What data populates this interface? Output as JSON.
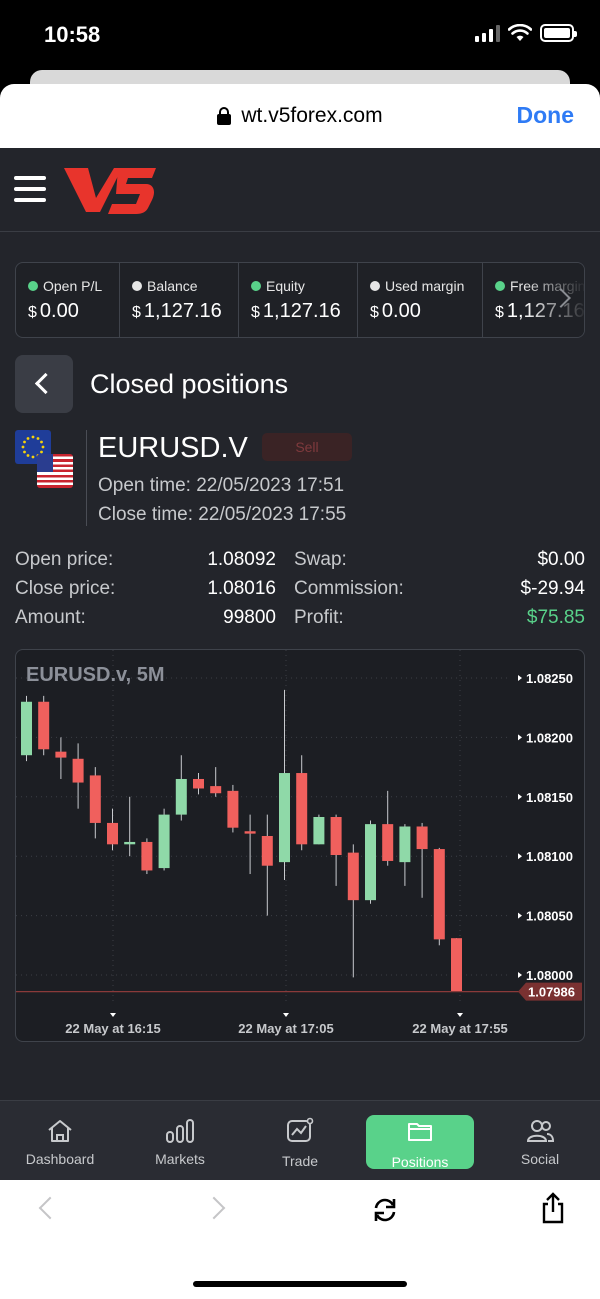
{
  "status_bar": {
    "time": "10:58"
  },
  "browser": {
    "url": "wt.v5forex.com",
    "done_label": "Done"
  },
  "stats": [
    {
      "label": "Open P/L",
      "currency": "$",
      "value": "0.00",
      "dot_color": "#59d28a"
    },
    {
      "label": "Balance",
      "currency": "$",
      "value": "1,127.16",
      "dot_color": "#e6e6e6"
    },
    {
      "label": "Equity",
      "currency": "$",
      "value": "1,127.16",
      "dot_color": "#59d28a"
    },
    {
      "label": "Used margin",
      "currency": "$",
      "value": "0.00",
      "dot_color": "#e6e6e6"
    },
    {
      "label": "Free margin",
      "currency": "$",
      "value": "1,127.16",
      "dot_color": "#59d28a"
    }
  ],
  "page": {
    "title": "Closed positions"
  },
  "position": {
    "symbol": "EURUSD.V",
    "side": "Sell",
    "open_time": "Open time: 22/05/2023 17:51",
    "close_time": "Close time: 22/05/2023 17:55",
    "details": {
      "open_price_label": "Open price:",
      "open_price": "1.08092",
      "close_price_label": "Close price:",
      "close_price": "1.08016",
      "amount_label": "Amount:",
      "amount": "99800",
      "swap_label": "Swap:",
      "swap": "$0.00",
      "commission_label": "Commission:",
      "commission": "$-29.94",
      "profit_label": "Profit:",
      "profit": "$75.85"
    }
  },
  "chart_data": {
    "type": "candlestick",
    "title": "EURUSD.v, 5M",
    "ylim": [
      1.0797,
      1.08275
    ],
    "y_ticks": [
      "1.08250",
      "1.08200",
      "1.08150",
      "1.08100",
      "1.08050",
      "1.08000"
    ],
    "x_ticks": [
      "22 May at 16:15",
      "22 May at 17:05",
      "22 May at 17:55"
    ],
    "last_price": "1.07986",
    "up_color": "#8fd9a8",
    "down_color": "#f0605d",
    "candles": [
      {
        "o": 1.08185,
        "h": 1.08235,
        "l": 1.0818,
        "c": 1.0823
      },
      {
        "o": 1.0823,
        "h": 1.08235,
        "l": 1.08185,
        "c": 1.0819
      },
      {
        "o": 1.08188,
        "h": 1.082,
        "l": 1.08165,
        "c": 1.08183
      },
      {
        "o": 1.08182,
        "h": 1.08195,
        "l": 1.0814,
        "c": 1.08162
      },
      {
        "o": 1.08168,
        "h": 1.08175,
        "l": 1.08115,
        "c": 1.08128
      },
      {
        "o": 1.08128,
        "h": 1.0814,
        "l": 1.08105,
        "c": 1.0811
      },
      {
        "o": 1.0811,
        "h": 1.0815,
        "l": 1.081,
        "c": 1.08112
      },
      {
        "o": 1.08112,
        "h": 1.08115,
        "l": 1.08085,
        "c": 1.08088
      },
      {
        "o": 1.0809,
        "h": 1.0814,
        "l": 1.08088,
        "c": 1.08135
      },
      {
        "o": 1.08135,
        "h": 1.08185,
        "l": 1.0813,
        "c": 1.08165
      },
      {
        "o": 1.08165,
        "h": 1.0817,
        "l": 1.08152,
        "c": 1.08157
      },
      {
        "o": 1.08159,
        "h": 1.08175,
        "l": 1.0815,
        "c": 1.08153
      },
      {
        "o": 1.08155,
        "h": 1.0816,
        "l": 1.0812,
        "c": 1.08124
      },
      {
        "o": 1.08121,
        "h": 1.08135,
        "l": 1.08085,
        "c": 1.08119
      },
      {
        "o": 1.08117,
        "h": 1.08135,
        "l": 1.0805,
        "c": 1.08092
      },
      {
        "o": 1.08095,
        "h": 1.0824,
        "l": 1.0808,
        "c": 1.0817
      },
      {
        "o": 1.0817,
        "h": 1.08185,
        "l": 1.08105,
        "c": 1.0811
      },
      {
        "o": 1.0811,
        "h": 1.08135,
        "l": 1.0811,
        "c": 1.08133
      },
      {
        "o": 1.08133,
        "h": 1.08135,
        "l": 1.08075,
        "c": 1.08101
      },
      {
        "o": 1.08103,
        "h": 1.0811,
        "l": 1.07998,
        "c": 1.08063
      },
      {
        "o": 1.08063,
        "h": 1.0813,
        "l": 1.0806,
        "c": 1.08127
      },
      {
        "o": 1.08127,
        "h": 1.08155,
        "l": 1.08092,
        "c": 1.08096
      },
      {
        "o": 1.08095,
        "h": 1.08127,
        "l": 1.08075,
        "c": 1.08125
      },
      {
        "o": 1.08125,
        "h": 1.08128,
        "l": 1.08065,
        "c": 1.08106
      },
      {
        "o": 1.08106,
        "h": 1.08107,
        "l": 1.08025,
        "c": 1.0803
      },
      {
        "o": 1.08031,
        "h": 1.08031,
        "l": 1.07986,
        "c": 1.07986
      }
    ]
  },
  "tabs": [
    {
      "label": "Dashboard",
      "icon": "home-icon"
    },
    {
      "label": "Markets",
      "icon": "bar-chart-icon"
    },
    {
      "label": "Trade",
      "icon": "trade-chart-icon"
    },
    {
      "label": "Positions",
      "icon": "folder-icon",
      "active": true
    },
    {
      "label": "Social",
      "icon": "users-icon"
    }
  ]
}
